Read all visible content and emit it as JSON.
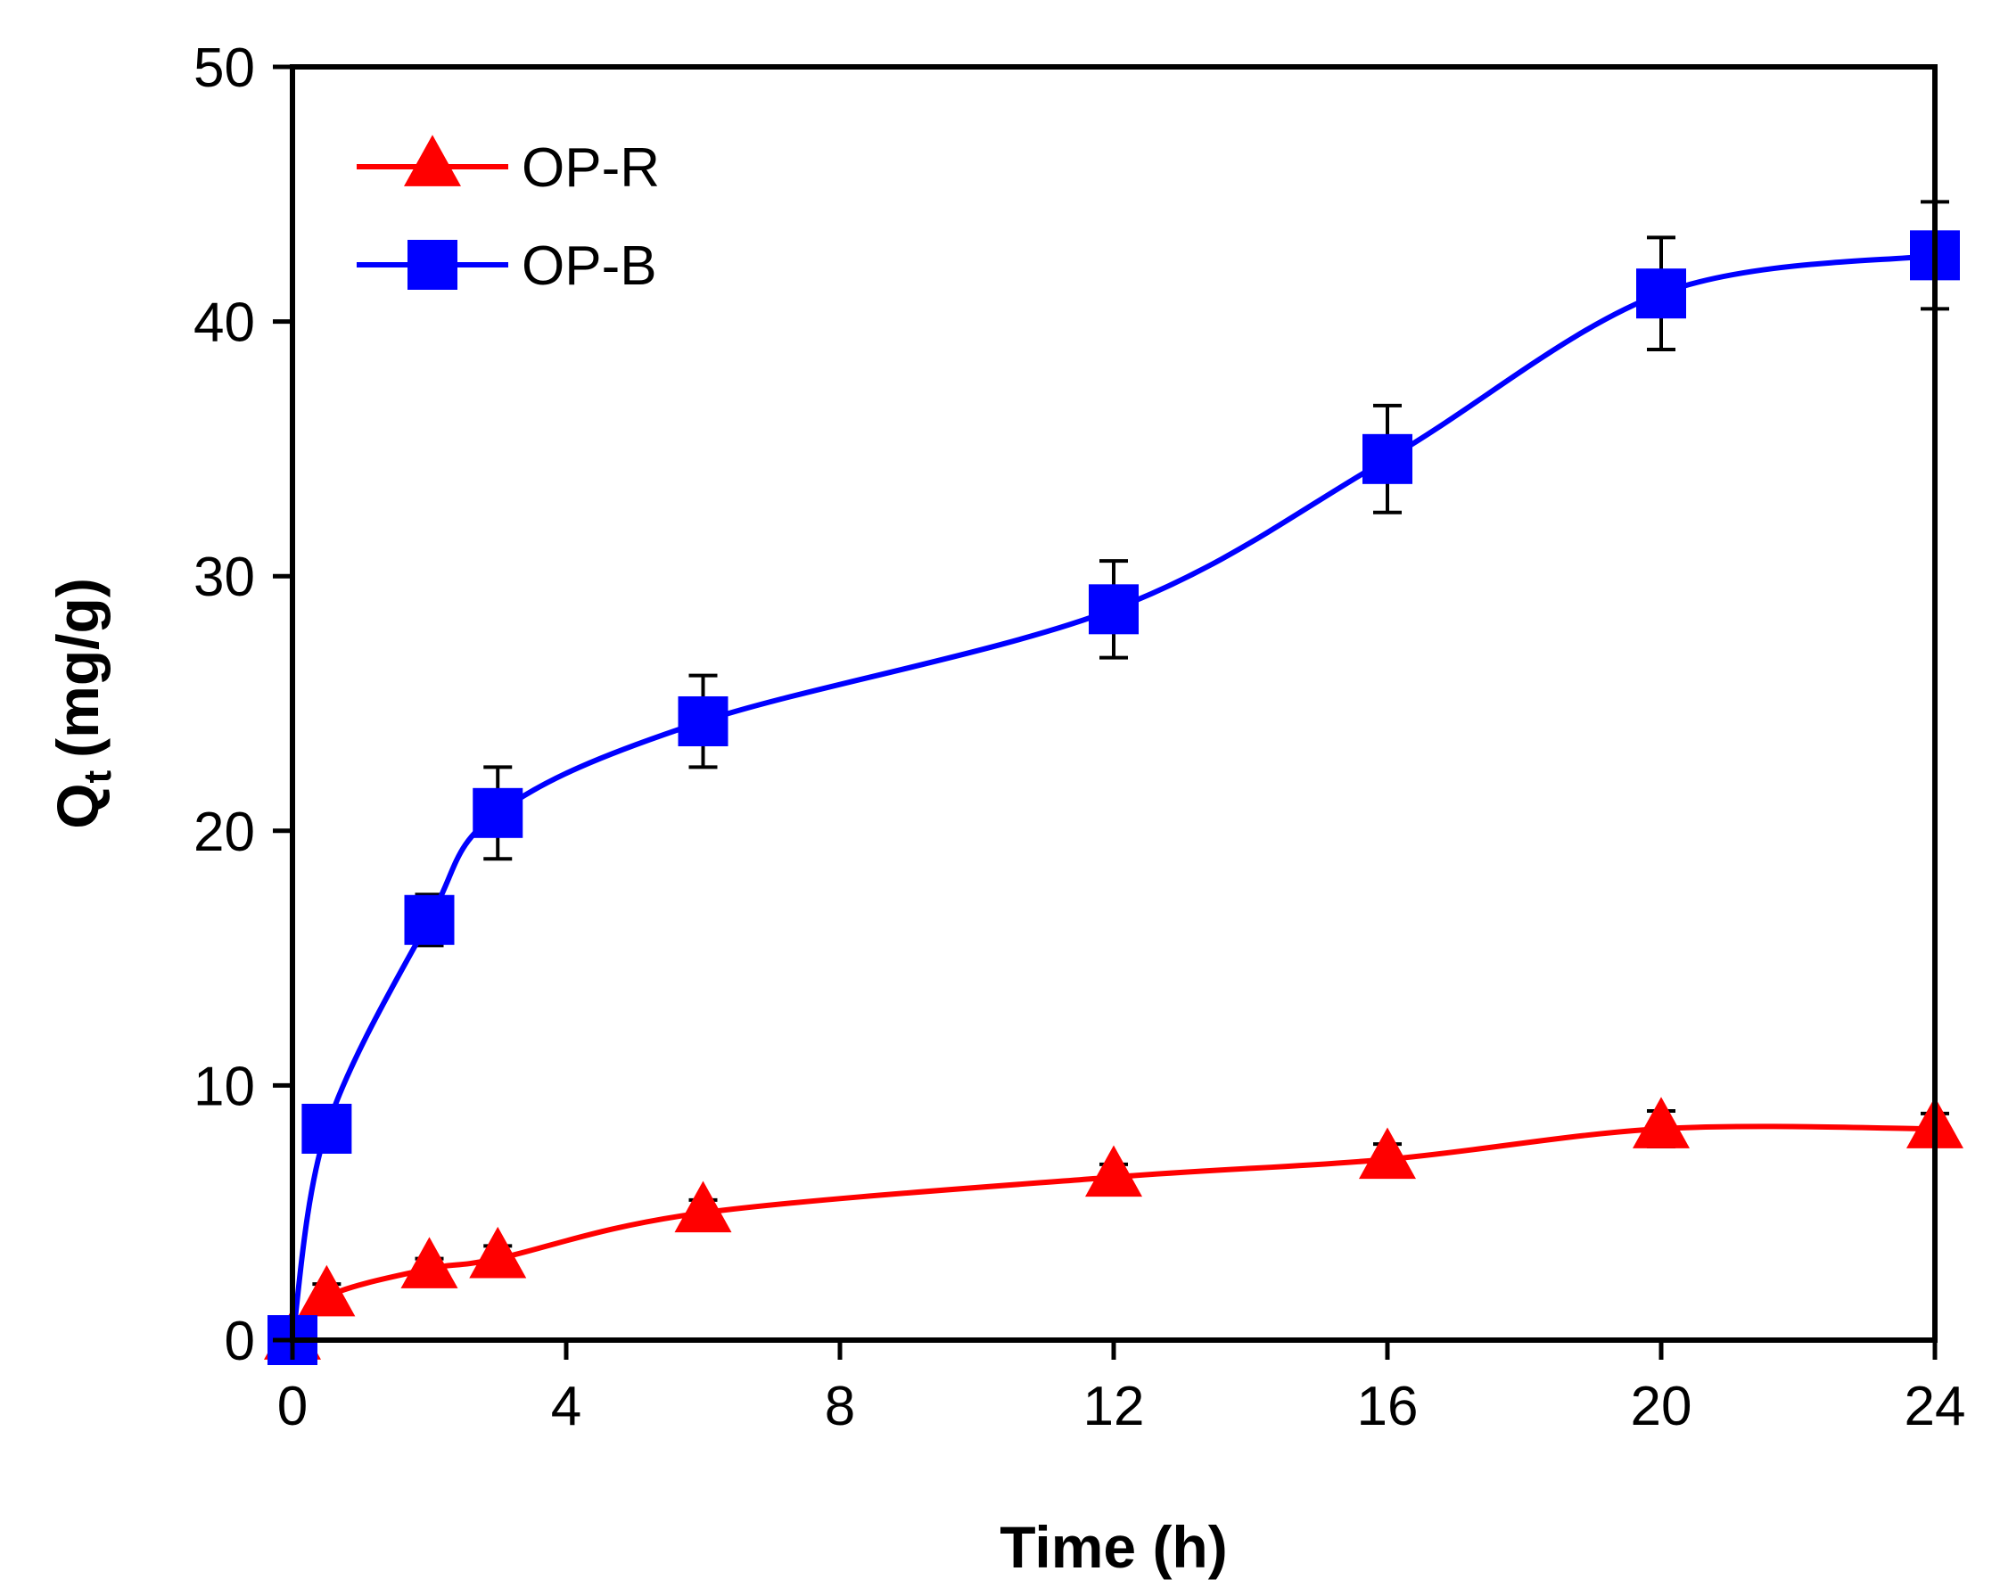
{
  "chart_data": {
    "type": "line",
    "title": "",
    "xlabel": "Time (h)",
    "ylabel_main": "Q",
    "ylabel_sub": "t",
    "ylabel_unit": "(mg/g)",
    "xlim": [
      0,
      24
    ],
    "ylim": [
      0,
      50
    ],
    "xticks": [
      0,
      4,
      8,
      12,
      16,
      20,
      24
    ],
    "yticks": [
      0,
      10,
      20,
      30,
      40,
      50
    ],
    "grid": false,
    "legend_position": "top-left",
    "x": [
      0,
      0.5,
      2,
      3,
      6,
      12,
      16,
      20,
      24
    ],
    "series": [
      {
        "name": "OP-R",
        "color": "#ff0000",
        "marker": "triangle",
        "values": [
          0,
          1.7,
          2.8,
          3.2,
          5.0,
          6.4,
          7.1,
          8.3,
          8.3
        ],
        "errors": [
          0,
          0.5,
          0.4,
          0.5,
          0.5,
          0.5,
          0.6,
          0.7,
          0.6
        ]
      },
      {
        "name": "OP-B",
        "color": "#0000ff",
        "marker": "square",
        "values": [
          0,
          8.3,
          16.5,
          20.7,
          24.3,
          28.7,
          34.6,
          41.1,
          42.6
        ],
        "errors": [
          0,
          0.3,
          1.0,
          1.8,
          1.8,
          1.9,
          2.1,
          2.2,
          2.1
        ]
      }
    ]
  }
}
